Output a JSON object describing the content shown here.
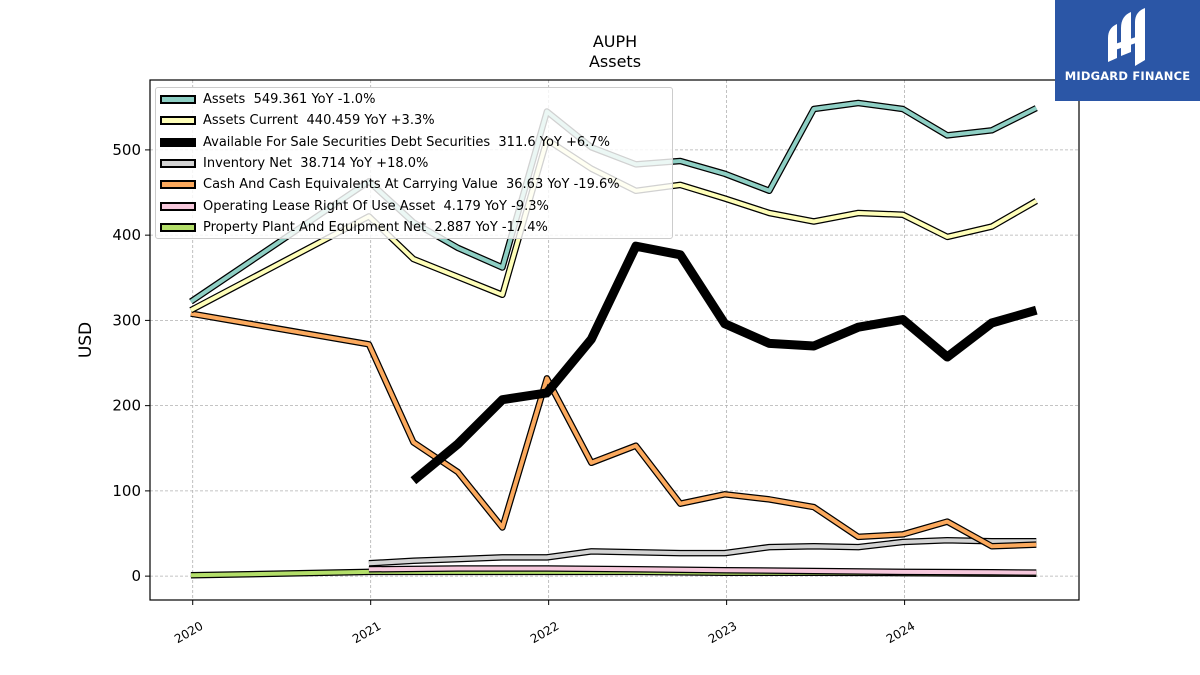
{
  "header": {
    "ticker": "AUPH",
    "subtitle": "Assets"
  },
  "brand": {
    "name": "MIDGARD FINANCE",
    "color": "#2b56a6"
  },
  "legend": [
    {
      "label": "Assets  549.361 YoY -1.0%",
      "color": "#8ecfc4"
    },
    {
      "label": "Assets Current  440.459 YoY +3.3%",
      "color": "#fefeb8"
    },
    {
      "label": "Available For Sale Securities Debt Securities  311.6 YoY +6.7%",
      "color": "#000000"
    },
    {
      "label": "Inventory Net  38.714 YoY +18.0%",
      "color": "#d3d3d3"
    },
    {
      "label": "Cash And Cash Equivalents At Carrying Value  36.63 YoY -19.6%",
      "color": "#fba95d"
    },
    {
      "label": "Operating Lease Right Of Use Asset  4.179 YoY -9.3%",
      "color": "#f6c8dc"
    },
    {
      "label": "Property Plant And Equipment Net  2.887 YoY -17.4%",
      "color": "#b3de69"
    }
  ],
  "chart_data": {
    "type": "line",
    "title": "AUPH",
    "subtitle": "Assets",
    "xlabel": "",
    "ylabel": "USD",
    "xlim": [
      2019.76,
      2024.98
    ],
    "ylim": [
      -28,
      582
    ],
    "x_ticks": [
      2020,
      2021,
      2022,
      2023,
      2024
    ],
    "x_tick_labels": [
      "2020",
      "2021",
      "2022",
      "2023",
      "2024"
    ],
    "y_ticks": [
      0,
      100,
      200,
      300,
      400,
      500
    ],
    "y_tick_labels": [
      "0",
      "100",
      "200",
      "300",
      "400",
      "500"
    ],
    "grid": true,
    "legend_position": "top-left",
    "series": [
      {
        "name": "Assets",
        "color": "#8ecfc4",
        "width": 4,
        "x": [
          2019.99,
          2020.99,
          2021.24,
          2021.49,
          2021.74,
          2021.99,
          2022.24,
          2022.49,
          2022.74,
          2022.99,
          2023.24,
          2023.49,
          2023.74,
          2023.99,
          2024.24,
          2024.49,
          2024.74
        ],
        "y": [
          322,
          463,
          415,
          385,
          362,
          545,
          503,
          483,
          487,
          472,
          452,
          548,
          555,
          548,
          517,
          523,
          549
        ]
      },
      {
        "name": "Assets Current",
        "color": "#fefeb8",
        "width": 4,
        "x": [
          2019.99,
          2020.99,
          2021.24,
          2021.49,
          2021.74,
          2021.99,
          2022.24,
          2022.49,
          2022.74,
          2022.99,
          2023.24,
          2023.49,
          2023.74,
          2023.99,
          2024.24,
          2024.49,
          2024.74
        ],
        "y": [
          312,
          422,
          372,
          351,
          330,
          512,
          478,
          452,
          459,
          443,
          426,
          416,
          426,
          424,
          398,
          410,
          440
        ]
      },
      {
        "name": "Available For Sale Securities Debt Securities",
        "color": "#000000",
        "width": 9,
        "x": [
          2021.24,
          2021.49,
          2021.74,
          2021.99,
          2022.24,
          2022.49,
          2022.74,
          2022.99,
          2023.24,
          2023.49,
          2023.74,
          2023.99,
          2024.24,
          2024.49,
          2024.74
        ],
        "y": [
          112,
          155,
          207,
          215,
          278,
          387,
          377,
          296,
          273,
          270,
          292,
          301,
          257,
          297,
          312
        ]
      },
      {
        "name": "Inventory Net",
        "color": "#d3d3d3",
        "width": 4,
        "x": [
          2020.99,
          2021.24,
          2021.49,
          2021.74,
          2021.99,
          2022.24,
          2022.49,
          2022.74,
          2022.99,
          2023.24,
          2023.49,
          2023.74,
          2023.99,
          2024.24,
          2024.49,
          2024.74
        ],
        "y": [
          15,
          18,
          20,
          22,
          22,
          29,
          28,
          27,
          27,
          34,
          35,
          34,
          40,
          42,
          41,
          41
        ]
      },
      {
        "name": "Cash And Cash Equivalents At Carrying Value",
        "color": "#fba95d",
        "width": 4,
        "x": [
          2019.99,
          2020.99,
          2021.24,
          2021.49,
          2021.74,
          2021.99,
          2022.24,
          2022.49,
          2022.74,
          2022.99,
          2023.24,
          2023.49,
          2023.74,
          2023.99,
          2024.24,
          2024.49,
          2024.74
        ],
        "y": [
          308,
          272,
          157,
          122,
          57,
          232,
          133,
          153,
          85,
          96,
          90,
          81,
          46,
          49,
          64,
          35,
          37
        ]
      },
      {
        "name": "Operating Lease Right Of Use Asset",
        "color": "#f6c8dc",
        "width": 4,
        "x": [
          2020.99,
          2021.49,
          2021.99,
          2022.49,
          2022.99,
          2023.49,
          2023.99,
          2024.49,
          2024.74
        ],
        "y": [
          8,
          9,
          9,
          8,
          7,
          6,
          5,
          4.5,
          4.2
        ]
      },
      {
        "name": "Property Plant And Equipment Net",
        "color": "#b3de69",
        "width": 4,
        "x": [
          2019.99,
          2020.99,
          2021.49,
          2021.99,
          2022.49,
          2022.99,
          2023.49,
          2023.99,
          2024.49,
          2024.74
        ],
        "y": [
          1,
          5,
          5,
          5,
          5,
          4,
          4,
          3.5,
          3,
          2.9
        ]
      }
    ]
  }
}
